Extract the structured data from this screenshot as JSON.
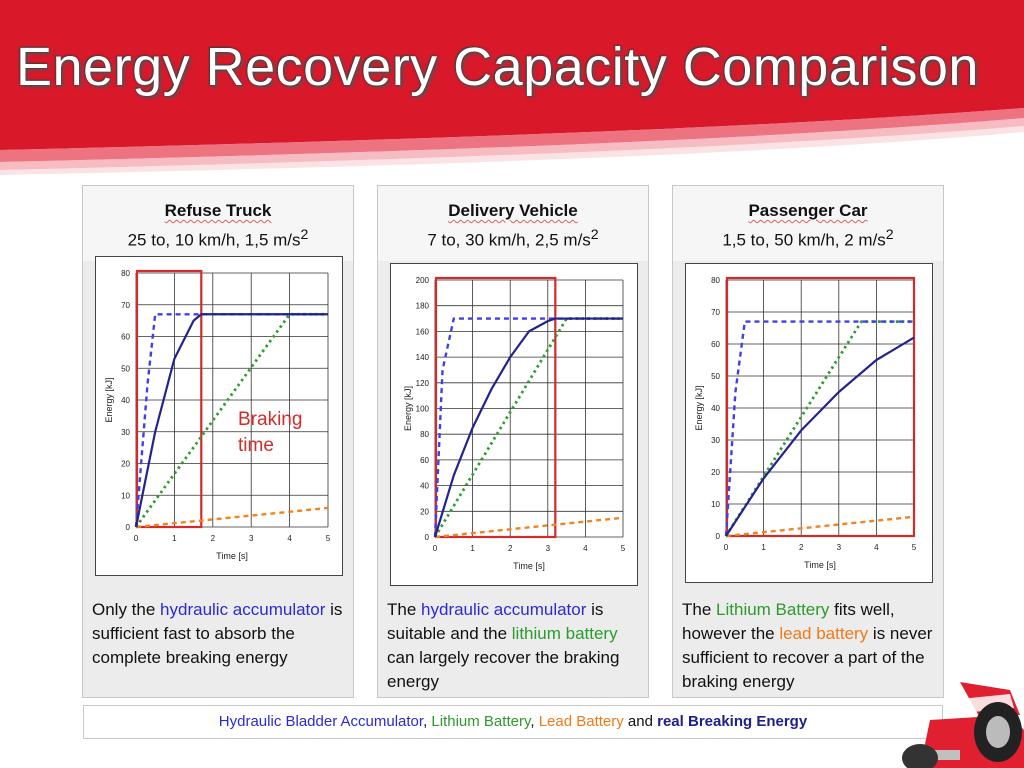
{
  "title": "Energy Recovery Capacity Comparison",
  "panels": [
    {
      "title": "Refuse Truck",
      "subtitle": "25 to, 10 km/h, 1,5 m/s",
      "sup": "2",
      "desc": [
        {
          "t": "Only the ",
          "c": ""
        },
        {
          "t": "hydraulic accumulator",
          "c": "blue"
        },
        {
          "t": " is sufficient fast to absorb the complete breaking energy",
          "c": ""
        }
      ]
    },
    {
      "title": "Delivery Vehicle",
      "subtitle": "7 to, 30 km/h, 2,5 m/s",
      "sup": "2",
      "desc": [
        {
          "t": "The ",
          "c": ""
        },
        {
          "t": "hydraulic accumulator",
          "c": "blue"
        },
        {
          "t": " is suitable and the ",
          "c": ""
        },
        {
          "t": "lithium battery",
          "c": "green"
        },
        {
          "t": " can largely recover the braking energy",
          "c": ""
        }
      ]
    },
    {
      "title": "Passenger Car",
      "subtitle": "1,5 to, 50 km/h, 2 m/s",
      "sup": "2",
      "desc": [
        {
          "t": "The ",
          "c": ""
        },
        {
          "t": "Lithium Battery",
          "c": "green"
        },
        {
          "t": " fits well, however the ",
          "c": ""
        },
        {
          "t": "lead battery",
          "c": "orange"
        },
        {
          "t": " is never sufficient to recover a part of the braking energy",
          "c": ""
        }
      ]
    }
  ],
  "legend": [
    {
      "t": "Hydraulic Bladder Accumulator",
      "c": "blue"
    },
    {
      "t": ", ",
      "c": ""
    },
    {
      "t": "Lithium Battery",
      "c": "green"
    },
    {
      "t": ", ",
      "c": ""
    },
    {
      "t": "Lead Battery",
      "c": "orange"
    },
    {
      "t": " and ",
      "c": ""
    },
    {
      "t": "real Breaking Energy",
      "c": "navy"
    }
  ],
  "colors": {
    "hydraulic": "#4040e6",
    "lithium": "#2f9e2f",
    "lead": "#f58220",
    "real": "#23238c",
    "braking_box": "#d42a2a",
    "banner": "#d9182a"
  },
  "chart_data": [
    {
      "type": "line",
      "title": "Refuse Truck",
      "xlabel": "Time [s]",
      "ylabel": "Energy [kJ]",
      "xlim": [
        0,
        5
      ],
      "ylim": [
        0,
        80
      ],
      "xticks": [
        0,
        1,
        2,
        3,
        4,
        5
      ],
      "yticks": [
        0,
        10,
        20,
        30,
        40,
        50,
        60,
        70,
        80
      ],
      "grid": true,
      "braking_time": 1.7,
      "annotation": [
        "Braking",
        "time"
      ],
      "series": [
        {
          "key": "hydraulic",
          "style": "dash",
          "x": [
            0,
            0.3,
            0.5,
            5
          ],
          "y": [
            0,
            45,
            67,
            67
          ]
        },
        {
          "key": "lithium",
          "style": "dot",
          "x": [
            0,
            4,
            5
          ],
          "y": [
            0,
            67,
            67
          ]
        },
        {
          "key": "lead",
          "style": "dash",
          "x": [
            0,
            5
          ],
          "y": [
            0,
            6
          ]
        },
        {
          "key": "real",
          "style": "solid",
          "x": [
            0,
            0.5,
            1,
            1.5,
            1.7,
            5
          ],
          "y": [
            0,
            30,
            53,
            65,
            67,
            67
          ]
        }
      ]
    },
    {
      "type": "line",
      "title": "Delivery Vehicle",
      "xlabel": "Time [s]",
      "ylabel": "Energy [kJ]",
      "xlim": [
        0,
        5
      ],
      "ylim": [
        0,
        200
      ],
      "xticks": [
        0,
        1,
        2,
        3,
        4,
        5
      ],
      "yticks": [
        0,
        20,
        40,
        60,
        80,
        100,
        120,
        140,
        160,
        180,
        200
      ],
      "grid": true,
      "braking_time": 3.2,
      "series": [
        {
          "key": "hydraulic",
          "style": "dash",
          "x": [
            0,
            0.2,
            0.5,
            5
          ],
          "y": [
            0,
            130,
            170,
            170
          ]
        },
        {
          "key": "lithium",
          "style": "dot",
          "x": [
            0,
            3.5,
            5
          ],
          "y": [
            0,
            170,
            170
          ]
        },
        {
          "key": "lead",
          "style": "dash",
          "x": [
            0,
            5
          ],
          "y": [
            0,
            15
          ]
        },
        {
          "key": "real",
          "style": "solid",
          "x": [
            0,
            0.5,
            1,
            1.5,
            2,
            2.5,
            3,
            3.2,
            5
          ],
          "y": [
            0,
            48,
            85,
            115,
            140,
            160,
            168,
            170,
            170
          ]
        }
      ]
    },
    {
      "type": "line",
      "title": "Passenger Car",
      "xlabel": "Time [s]",
      "ylabel": "Energy [kJ]",
      "xlim": [
        0,
        5
      ],
      "ylim": [
        0,
        80
      ],
      "xticks": [
        0,
        1,
        2,
        3,
        4,
        5
      ],
      "yticks": [
        0,
        10,
        20,
        30,
        40,
        50,
        60,
        70,
        80
      ],
      "grid": true,
      "braking_time": 5,
      "series": [
        {
          "key": "hydraulic",
          "style": "dash",
          "x": [
            0,
            0.25,
            0.5,
            5
          ],
          "y": [
            0,
            45,
            67,
            67
          ]
        },
        {
          "key": "lithium",
          "style": "dot",
          "x": [
            0,
            3.6,
            5
          ],
          "y": [
            0,
            67,
            67
          ]
        },
        {
          "key": "lead",
          "style": "dash",
          "x": [
            0,
            5
          ],
          "y": [
            0,
            6
          ]
        },
        {
          "key": "real",
          "style": "solid",
          "x": [
            0,
            1,
            2,
            3,
            4,
            5
          ],
          "y": [
            0,
            18,
            33,
            45,
            55,
            62
          ]
        }
      ]
    }
  ]
}
